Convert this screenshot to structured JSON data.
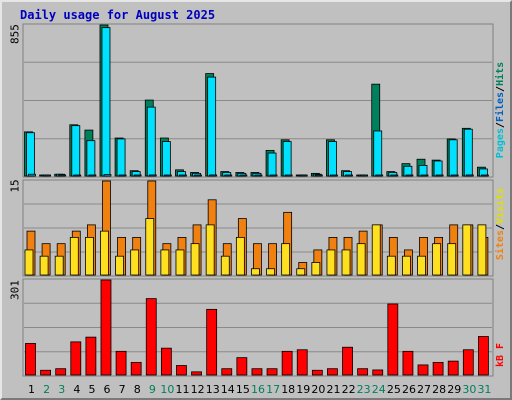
{
  "title": "Daily usage for August 2025",
  "colors": {
    "hits": "#00805c",
    "files": "#00e0ff",
    "pages": "#00c0d0",
    "visits": "#f08010",
    "sites": "#ffe020",
    "kbytes": "#ff0000",
    "panel_bg": "#c0c0c0",
    "title": "#0000c0",
    "day_weekday": "#000000",
    "day_weekend": "#00805c"
  },
  "chart_data": [
    {
      "type": "bar",
      "panel": "top",
      "ymax_label": "855",
      "ylim": [
        0,
        855
      ],
      "legend": [
        {
          "text": "Pages",
          "color": "#00c0d0"
        },
        {
          "text": "/",
          "color": "#000000"
        },
        {
          "text": "Files",
          "color": "#0060c0"
        },
        {
          "text": "/",
          "color": "#000000"
        },
        {
          "text": "Hits",
          "color": "#00805c"
        }
      ],
      "series": [
        {
          "key": "hits",
          "values": [
            250,
            5,
            10,
            290,
            260,
            855,
            215,
            30,
            430,
            215,
            35,
            20,
            580,
            25,
            20,
            20,
            145,
            205,
            5,
            15,
            205,
            30,
            5,
            520,
            25,
            70,
            95,
            90,
            210,
            270,
            50
          ]
        },
        {
          "key": "files",
          "values": [
            245,
            5,
            10,
            285,
            200,
            840,
            210,
            25,
            390,
            195,
            25,
            15,
            560,
            20,
            15,
            15,
            130,
            195,
            5,
            10,
            195,
            25,
            5,
            255,
            20,
            55,
            60,
            85,
            205,
            265,
            40
          ]
        },
        {
          "key": "pages",
          "values": [
            10,
            2,
            2,
            5,
            5,
            8,
            5,
            3,
            6,
            5,
            2,
            2,
            6,
            3,
            2,
            2,
            4,
            5,
            1,
            2,
            5,
            3,
            1,
            5,
            2,
            3,
            3,
            3,
            5,
            6,
            2
          ]
        }
      ]
    },
    {
      "type": "bar",
      "panel": "middle",
      "ymax_label": "15",
      "ylim": [
        0,
        15
      ],
      "legend": [
        {
          "text": "Sites",
          "color": "#f08010"
        },
        {
          "text": "/",
          "color": "#000000"
        },
        {
          "text": "Visits",
          "color": "#e0e000"
        }
      ],
      "series": [
        {
          "key": "visits",
          "values": [
            7,
            5,
            5,
            7,
            8,
            15,
            6,
            6,
            15,
            5,
            6,
            8,
            12,
            5,
            9,
            5,
            5,
            10,
            2,
            4,
            6,
            6,
            7,
            8,
            6,
            4,
            6,
            6,
            8,
            8,
            6
          ]
        },
        {
          "key": "sites",
          "values": [
            4,
            3,
            3,
            6,
            6,
            7,
            3,
            4,
            9,
            4,
            4,
            5,
            8,
            3,
            6,
            1,
            1,
            5,
            1,
            2,
            4,
            4,
            5,
            8,
            3,
            3,
            3,
            5,
            5,
            8,
            8
          ]
        }
      ]
    },
    {
      "type": "bar",
      "panel": "bottom",
      "ymax_label": "301",
      "ylim": [
        0,
        301
      ],
      "legend": [
        {
          "text": "kB F",
          "color": "#ff0000"
        }
      ],
      "series": [
        {
          "key": "kbytes",
          "values": [
            100,
            15,
            20,
            105,
            120,
            301,
            75,
            40,
            242,
            85,
            30,
            10,
            208,
            20,
            55,
            20,
            20,
            75,
            80,
            15,
            20,
            88,
            20,
            16,
            225,
            75,
            32,
            40,
            44,
            80,
            122
          ]
        }
      ]
    },
    {
      "type": "categories",
      "days": [
        "1",
        "2",
        "3",
        "4",
        "5",
        "6",
        "7",
        "8",
        "9",
        "10",
        "11",
        "12",
        "13",
        "14",
        "15",
        "16",
        "17",
        "18",
        "19",
        "20",
        "21",
        "22",
        "23",
        "24",
        "25",
        "26",
        "27",
        "28",
        "29",
        "30",
        "31"
      ],
      "weekend": [
        false,
        true,
        true,
        false,
        false,
        false,
        false,
        false,
        true,
        true,
        false,
        false,
        false,
        false,
        false,
        true,
        true,
        false,
        false,
        false,
        false,
        false,
        true,
        true,
        false,
        false,
        false,
        false,
        false,
        true,
        true
      ]
    }
  ]
}
